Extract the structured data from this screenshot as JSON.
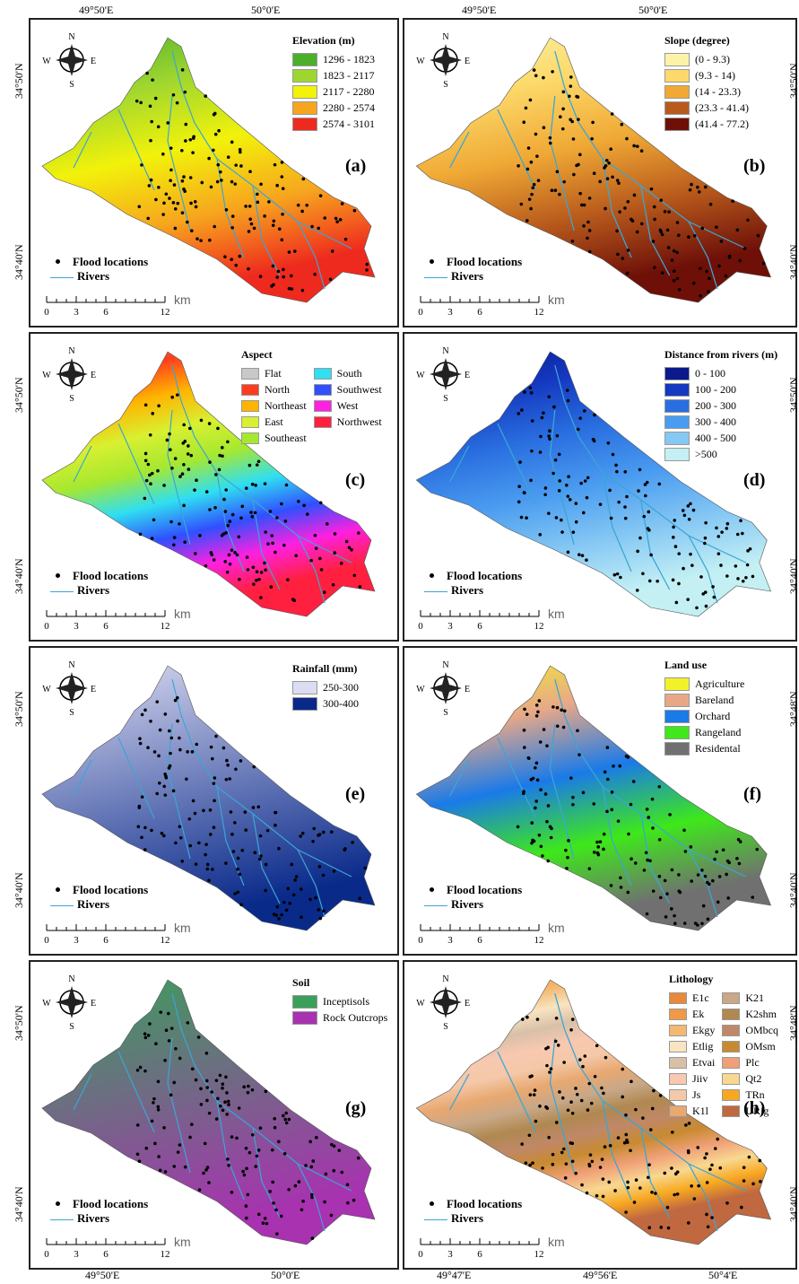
{
  "top_lon_labels": [
    "49°50'E",
    "50°0'E",
    "49°50'E",
    "50°0'E"
  ],
  "bottom_lon_labels": [
    "49°50'E",
    "50°0'E",
    "49°47'E",
    "49°56'E",
    "50°4'E"
  ],
  "compass": {
    "n": "N",
    "s": "S",
    "e": "E",
    "w": "W"
  },
  "common_legend": {
    "flood": "Flood locations",
    "rivers": "Rivers"
  },
  "scale_bar": {
    "ticks": [
      0,
      3,
      6,
      12
    ],
    "unit": "km"
  },
  "panels": [
    {
      "letter": "(a)",
      "legend_title": "Elevation (m)",
      "lat_labels": [
        "34°50'N",
        "34°40'N"
      ],
      "items": [
        {
          "label": "1296 - 1823",
          "color": "#4caf2a"
        },
        {
          "label": "1823 - 2117",
          "color": "#9ed630"
        },
        {
          "label": "2117 - 2280",
          "color": "#f2f20a"
        },
        {
          "label": "2280 - 2574",
          "color": "#f7a51e"
        },
        {
          "label": "2574 - 3101",
          "color": "#ee2a1e"
        }
      ]
    },
    {
      "letter": "(b)",
      "legend_title": "Slope (degree)",
      "lat_labels": [
        "34°50'N",
        "34°40'N"
      ],
      "items": [
        {
          "label": "(0 - 9.3)",
          "color": "#fdf3a8"
        },
        {
          "label": "(9.3 - 14)",
          "color": "#fcd96a"
        },
        {
          "label": "(14 - 23.3)",
          "color": "#f0a935"
        },
        {
          "label": "(23.3 - 41.4)",
          "color": "#b85a1c"
        },
        {
          "label": "(41.4 - 77.2)",
          "color": "#6e1008"
        }
      ]
    },
    {
      "letter": "(c)",
      "legend_title": "Aspect",
      "lat_labels": [
        "34°50'N",
        "34°40'N"
      ],
      "items": [
        {
          "label": "Flat",
          "color": "#c8c8c8"
        },
        {
          "label": "North",
          "color": "#ff3b1f"
        },
        {
          "label": "Northeast",
          "color": "#ffb400"
        },
        {
          "label": "East",
          "color": "#d8f030"
        },
        {
          "label": "Southeast",
          "color": "#a6e830"
        },
        {
          "label": "South",
          "color": "#30dff0"
        },
        {
          "label": "Southwest",
          "color": "#3050ff"
        },
        {
          "label": "West",
          "color": "#ff20e0"
        },
        {
          "label": "Northwest",
          "color": "#ff2040"
        }
      ]
    },
    {
      "letter": "(d)",
      "legend_title": "Distance from rivers (m)",
      "lat_labels": [
        "34°50'N",
        "34°40'N"
      ],
      "items": [
        {
          "label": "0 - 100",
          "color": "#0a1a8c"
        },
        {
          "label": "100 - 200",
          "color": "#1438c0"
        },
        {
          "label": "200 - 300",
          "color": "#2a6fe0"
        },
        {
          "label": "300 - 400",
          "color": "#4a9cf0"
        },
        {
          "label": "400 - 500",
          "color": "#86c8f4"
        },
        {
          "label": ">500",
          "color": "#c4f0f4"
        }
      ]
    },
    {
      "letter": "(e)",
      "legend_title": "Rainfall (mm)",
      "lat_labels": [
        "34°50'N",
        "34°40'N"
      ],
      "items": [
        {
          "label": "250-300",
          "color": "#dcdcf2"
        },
        {
          "label": "300-400",
          "color": "#0a2a8a"
        }
      ]
    },
    {
      "letter": "(f)",
      "legend_title": "Land use",
      "lat_labels": [
        "34°48'N",
        "34°40'N"
      ],
      "items": [
        {
          "label": "Agriculture",
          "color": "#f2f22a"
        },
        {
          "label": "Bareland",
          "color": "#e8a888"
        },
        {
          "label": "Orchard",
          "color": "#1a7ae8"
        },
        {
          "label": "Rangeland",
          "color": "#3ee81a"
        },
        {
          "label": "Residental",
          "color": "#707070"
        }
      ]
    },
    {
      "letter": "(g)",
      "legend_title": "Soil",
      "lat_labels": [
        "34°50'N",
        "34°40'N"
      ],
      "items": [
        {
          "label": "Inceptisols",
          "color": "#3aa05a"
        },
        {
          "label": "Rock Outcrops",
          "color": "#a832b0"
        }
      ]
    },
    {
      "letter": "(h)",
      "legend_title": "Lithology",
      "lat_labels": [
        "34°48'N",
        "34°40'N"
      ],
      "items": [
        {
          "label": "E1c",
          "color": "#e88a3a"
        },
        {
          "label": "Ek",
          "color": "#f09a48"
        },
        {
          "label": "Ekgy",
          "color": "#f4b870"
        },
        {
          "label": "Etlig",
          "color": "#f8e4c0"
        },
        {
          "label": "Etvai",
          "color": "#d8c0a8"
        },
        {
          "label": "Jiiv",
          "color": "#f8c8b0"
        },
        {
          "label": "Js",
          "color": "#f4c8a8"
        },
        {
          "label": "K1l",
          "color": "#e8a870"
        },
        {
          "label": "K21",
          "color": "#c8a888"
        },
        {
          "label": "K2shm",
          "color": "#b08850"
        },
        {
          "label": "OMbcq",
          "color": "#c08868"
        },
        {
          "label": "OMsm",
          "color": "#c88a30"
        },
        {
          "label": "Plc",
          "color": "#f0a078"
        },
        {
          "label": "Qt2",
          "color": "#f8d890"
        },
        {
          "label": "TRn",
          "color": "#f8a820"
        },
        {
          "label": "URig",
          "color": "#c06840"
        }
      ]
    }
  ]
}
